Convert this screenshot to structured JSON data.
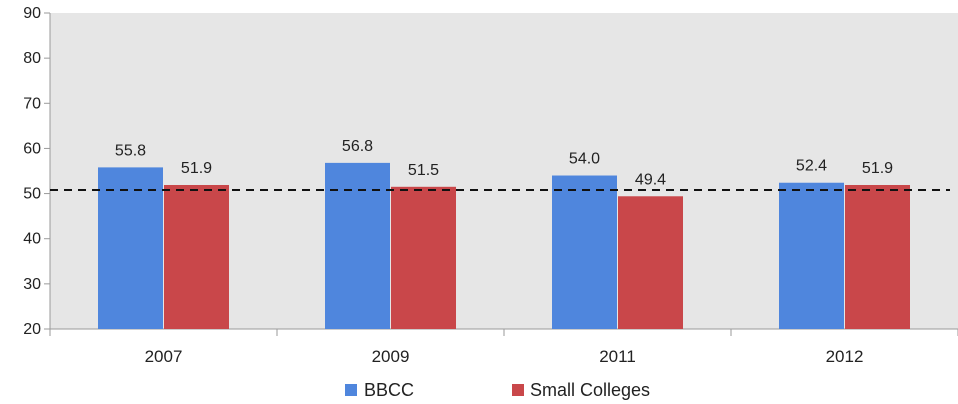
{
  "chart_data": {
    "type": "bar",
    "categories": [
      "2007",
      "2009",
      "2011",
      "2012"
    ],
    "series": [
      {
        "name": "BBCC",
        "values": [
          55.8,
          56.8,
          54.0,
          52.4
        ],
        "labels": [
          "55.8",
          "56.8",
          "54.0",
          "52.4"
        ],
        "color": "#4f86dd"
      },
      {
        "name": "Small Colleges",
        "values": [
          51.9,
          51.5,
          49.4,
          51.9
        ],
        "labels": [
          "51.9",
          "51.5",
          "49.4",
          "51.9"
        ],
        "color": "#c9474a"
      }
    ],
    "ylim": [
      20,
      90
    ],
    "yticks": [
      "20",
      "30",
      "40",
      "50",
      "60",
      "70",
      "80",
      "90"
    ],
    "reference_line": {
      "value": 50.8,
      "style": "dashed"
    },
    "grid": false,
    "legend_position": "bottom",
    "plot_background": "#e6e6e6"
  }
}
